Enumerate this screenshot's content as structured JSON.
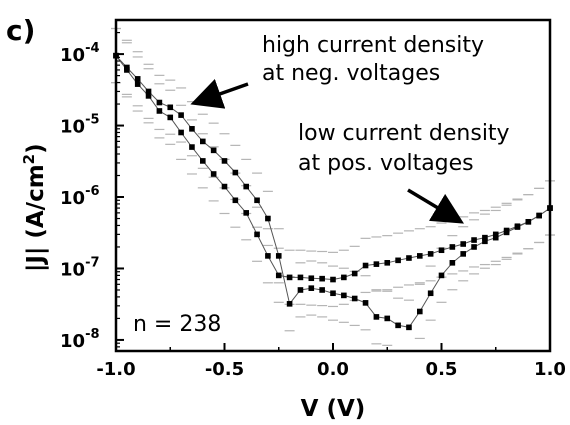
{
  "chart_data": {
    "type": "scatter",
    "panel_label": "c)",
    "xlabel": "V (V)",
    "ylabel": "|J| (A/cm²)",
    "ylabel_parts": {
      "main": "|J| (A/cm",
      "sup": "2",
      "end": ")"
    },
    "xlim": [
      -1.0,
      1.0
    ],
    "ylim": [
      7e-09,
      0.0003
    ],
    "y_scale": "log",
    "x_ticks": [
      "-1.0",
      "-0.5",
      "0.0",
      "0.5",
      "1.0"
    ],
    "y_ticks": [
      {
        "base": "10",
        "exp": "-4",
        "value": 0.0001
      },
      {
        "base": "10",
        "exp": "-5",
        "value": 1e-05
      },
      {
        "base": "10",
        "exp": "-6",
        "value": 1e-06
      },
      {
        "base": "10",
        "exp": "-7",
        "value": 1e-07
      },
      {
        "base": "10",
        "exp": "-8",
        "value": 1e-08
      }
    ],
    "annotations": {
      "high_line1": "high current density",
      "high_line2": "at neg. voltages",
      "low_line1": "low current density",
      "low_line2": "at pos. voltages",
      "count": "n = 238"
    },
    "series": [
      {
        "x": [
          -1.0,
          -0.95,
          -0.9,
          -0.85,
          -0.8,
          -0.75,
          -0.7,
          -0.65,
          -0.6,
          -0.55,
          -0.5,
          -0.45,
          -0.4,
          -0.35,
          -0.3,
          -0.25,
          -0.2,
          -0.15,
          -0.1,
          -0.05,
          0.0,
          0.05,
          0.1,
          0.15,
          0.2,
          0.25,
          0.3,
          0.35,
          0.4,
          0.45,
          0.5,
          0.55,
          0.6,
          0.65,
          0.7,
          0.75,
          0.8,
          0.85,
          0.9,
          0.95,
          1.0
        ],
        "y": [
          9.5e-05,
          6e-05,
          3.8e-05,
          2.6e-05,
          1.6e-05,
          1.3e-05,
          8e-06,
          5e-06,
          3.2e-06,
          2.1e-06,
          1.4e-06,
          9e-07,
          6e-07,
          3e-07,
          1.5e-07,
          8e-08,
          7.5e-08,
          7.5e-08,
          7.3e-08,
          7.2e-08,
          7e-08,
          7.5e-08,
          8.5e-08,
          1.1e-07,
          1.15e-07,
          1.2e-07,
          1.3e-07,
          1.4e-07,
          1.5e-07,
          1.6e-07,
          1.8e-07,
          2e-07,
          2.2e-07,
          2.5e-07,
          2.7e-07,
          3e-07,
          3.4e-07,
          3.9e-07,
          4.5e-07,
          5.5e-07,
          7e-07
        ]
      },
      {
        "x": [
          -1.0,
          -0.95,
          -0.9,
          -0.85,
          -0.8,
          -0.75,
          -0.7,
          -0.65,
          -0.6,
          -0.55,
          -0.5,
          -0.45,
          -0.4,
          -0.35,
          -0.3,
          -0.25,
          -0.2,
          -0.15,
          -0.1,
          -0.05,
          0.0,
          0.05,
          0.1,
          0.15,
          0.2,
          0.25,
          0.3,
          0.35,
          0.4,
          0.45,
          0.5,
          0.55,
          0.6,
          0.65,
          0.7,
          0.75,
          0.8,
          0.85,
          0.9,
          0.95,
          1.0
        ],
        "y": [
          9.5e-05,
          6.5e-05,
          4.5e-05,
          3e-05,
          2.1e-05,
          1.8e-05,
          1.4e-05,
          9e-06,
          6e-06,
          4.5e-06,
          3.2e-06,
          2.2e-06,
          1.4e-06,
          9e-07,
          5e-07,
          1.5e-07,
          3.2e-08,
          5e-08,
          5.3e-08,
          5e-08,
          4.5e-08,
          4.2e-08,
          3.8e-08,
          3.3e-08,
          2.1e-08,
          2e-08,
          1.6e-08,
          1.5e-08,
          2.5e-08,
          4.5e-08,
          8e-08,
          1.2e-07,
          1.6e-07,
          2e-07,
          2.4e-07,
          2.7e-07,
          3.2e-07,
          3.8e-07,
          4.5e-07,
          5.5e-07,
          7e-07
        ]
      }
    ]
  }
}
